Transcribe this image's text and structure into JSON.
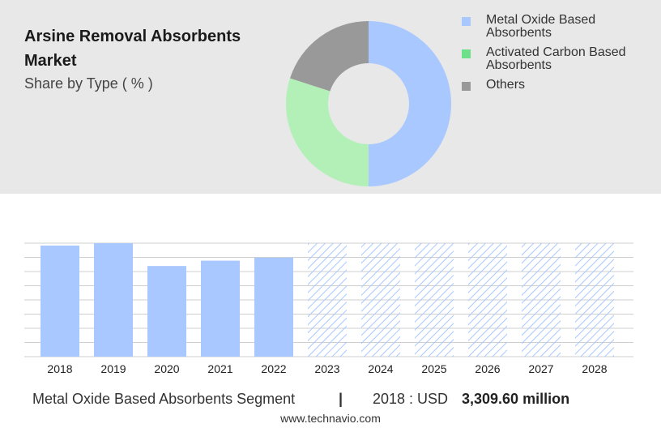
{
  "header": {
    "title": "Arsine Removal Absorbents Market",
    "subtitle": "Share by Type ( % )"
  },
  "colors": {
    "metal_oxide": "#a8c8ff",
    "activated_carbon": "#b3f0b8",
    "others": "#999999",
    "legend_activated_carbon": "#6fe08a",
    "bar": "#a8c8ff",
    "forecast_hatch": "#a8c8ff",
    "top_panel": "#e8e8e8"
  },
  "legend": [
    {
      "label": "Metal Oxide Based Absorbents",
      "color_key": "metal_oxide"
    },
    {
      "label": "Activated Carbon Based Absorbents",
      "color_key": "legend_activated_carbon"
    },
    {
      "label": "Others",
      "color_key": "others"
    }
  ],
  "chart_data": [
    {
      "type": "pie",
      "variant": "donut",
      "labels": [
        "Metal Oxide Based Absorbents",
        "Activated Carbon Based Absorbents",
        "Others"
      ],
      "values": [
        50,
        30,
        20
      ],
      "colors": [
        "#a8c8ff",
        "#b3f0b8",
        "#999999"
      ]
    },
    {
      "type": "bar",
      "categories": [
        "2018",
        "2019",
        "2020",
        "2021",
        "2022",
        "2023",
        "2024",
        "2025",
        "2026",
        "2027",
        "2028"
      ],
      "values": [
        3309.6,
        3380,
        2700,
        2860,
        2950,
        3380,
        3380,
        3380,
        3380,
        3380,
        3380
      ],
      "forecast": [
        false,
        false,
        false,
        false,
        false,
        true,
        true,
        true,
        true,
        true,
        true
      ],
      "ylim": [
        0,
        3380
      ],
      "grid": true
    }
  ],
  "footer": {
    "segment": "Metal Oxide Based Absorbents Segment",
    "separator": "|",
    "year_label": "2018 : USD",
    "value": "3,309.60 million",
    "site": "www.technavio.com"
  }
}
